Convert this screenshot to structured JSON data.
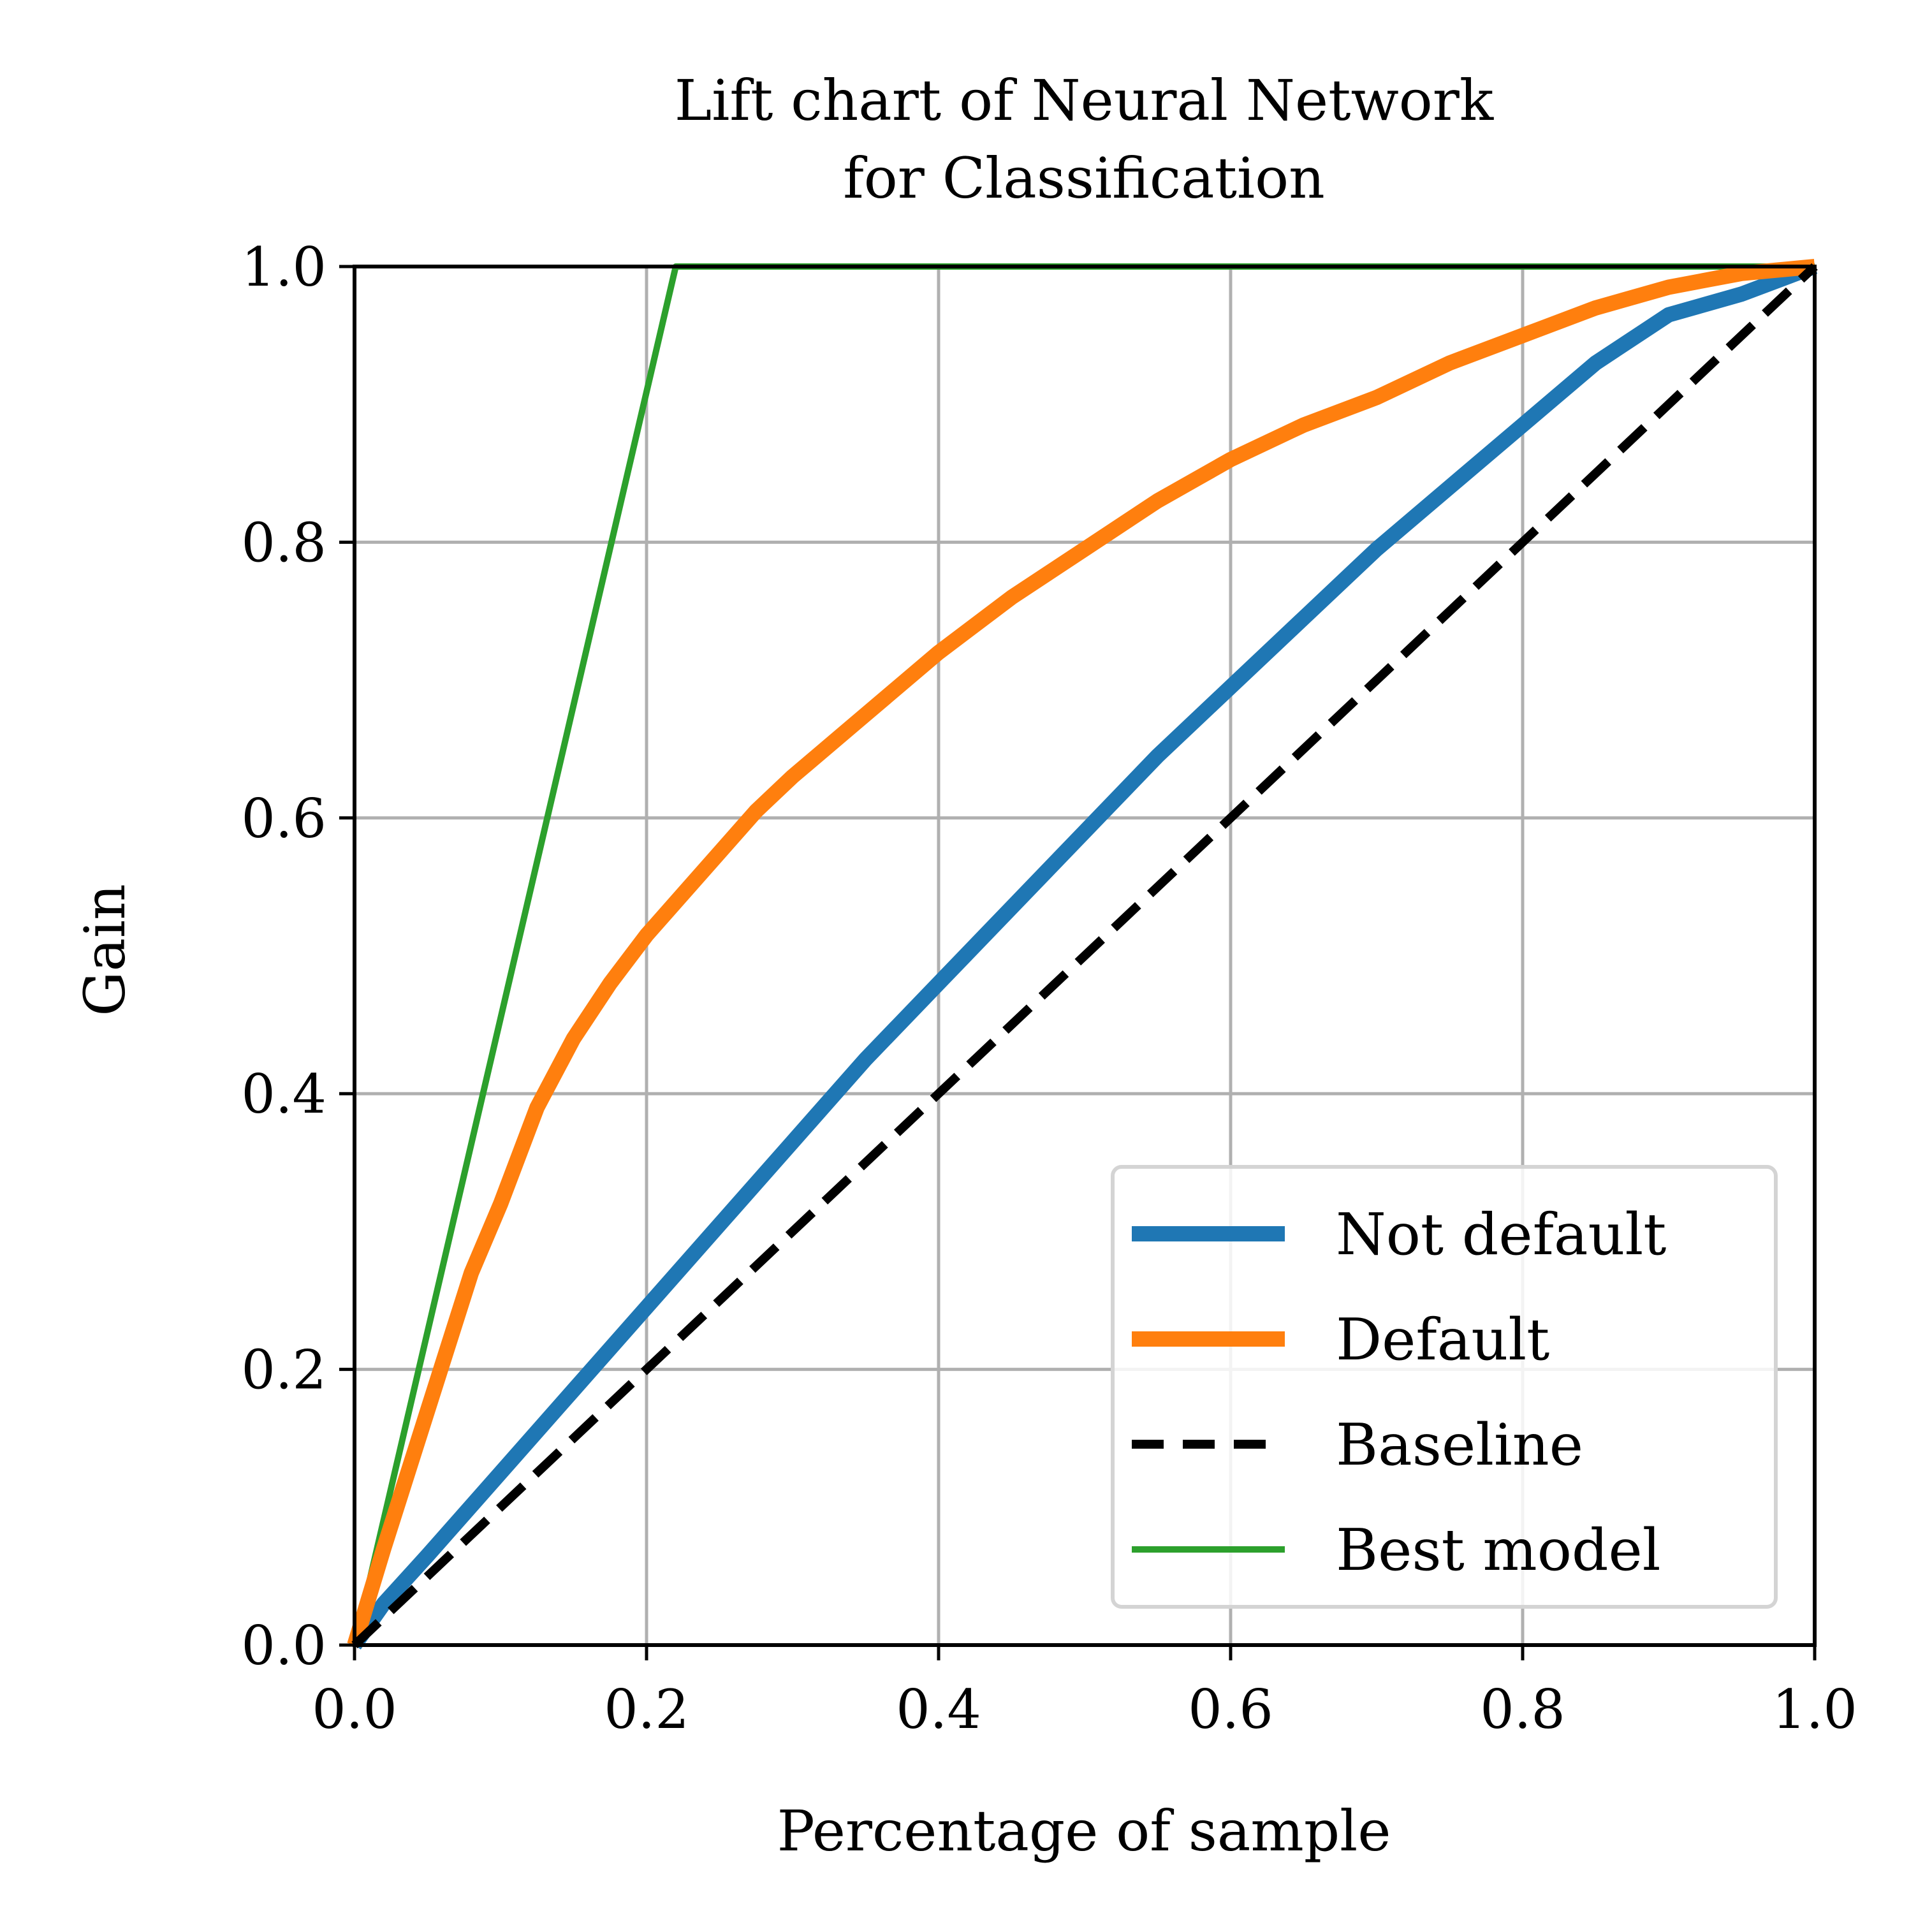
{
  "chart_data": {
    "type": "line",
    "title_lines": [
      "Lift chart of Neural Network",
      "for Classification"
    ],
    "xlabel": "Percentage of sample",
    "ylabel": "Gain",
    "xlim": [
      0,
      1
    ],
    "ylim": [
      0,
      1
    ],
    "x_ticks": [
      "0.0",
      "0.2",
      "0.4",
      "0.6",
      "0.8",
      "1.0"
    ],
    "y_ticks": [
      "0.0",
      "0.2",
      "0.4",
      "0.6",
      "0.8",
      "1.0"
    ],
    "grid": true,
    "legend_position": "lower right",
    "series": [
      {
        "name": "Not default",
        "color": "#1f77b4",
        "style": "solid-thick",
        "points": [
          [
            0,
            0
          ],
          [
            0.02,
            0.03
          ],
          [
            0.05,
            0.065
          ],
          [
            0.1,
            0.125
          ],
          [
            0.15,
            0.185
          ],
          [
            0.2,
            0.245
          ],
          [
            0.25,
            0.305
          ],
          [
            0.3,
            0.365
          ],
          [
            0.35,
            0.425
          ],
          [
            0.4,
            0.48
          ],
          [
            0.45,
            0.535
          ],
          [
            0.5,
            0.59
          ],
          [
            0.55,
            0.645
          ],
          [
            0.6,
            0.695
          ],
          [
            0.65,
            0.745
          ],
          [
            0.7,
            0.795
          ],
          [
            0.75,
            0.84
          ],
          [
            0.8,
            0.885
          ],
          [
            0.85,
            0.93
          ],
          [
            0.9,
            0.965
          ],
          [
            0.95,
            0.98
          ],
          [
            1.0,
            1.0
          ]
        ]
      },
      {
        "name": "Default",
        "color": "#ff7f0e",
        "style": "solid-thick",
        "points": [
          [
            0,
            0
          ],
          [
            0.02,
            0.07
          ],
          [
            0.05,
            0.17
          ],
          [
            0.08,
            0.27
          ],
          [
            0.1,
            0.32
          ],
          [
            0.125,
            0.39
          ],
          [
            0.15,
            0.44
          ],
          [
            0.175,
            0.48
          ],
          [
            0.2,
            0.515
          ],
          [
            0.225,
            0.545
          ],
          [
            0.25,
            0.575
          ],
          [
            0.275,
            0.605
          ],
          [
            0.3,
            0.63
          ],
          [
            0.35,
            0.675
          ],
          [
            0.4,
            0.72
          ],
          [
            0.45,
            0.76
          ],
          [
            0.5,
            0.795
          ],
          [
            0.55,
            0.83
          ],
          [
            0.6,
            0.86
          ],
          [
            0.65,
            0.885
          ],
          [
            0.7,
            0.905
          ],
          [
            0.75,
            0.93
          ],
          [
            0.8,
            0.95
          ],
          [
            0.85,
            0.97
          ],
          [
            0.9,
            0.985
          ],
          [
            0.95,
            0.995
          ],
          [
            1.0,
            1.0
          ]
        ]
      },
      {
        "name": "Baseline",
        "color": "#000000",
        "style": "dashed",
        "points": [
          [
            0,
            0
          ],
          [
            1,
            1
          ]
        ]
      },
      {
        "name": "Best model",
        "color": "#2ca02c",
        "style": "solid-thin",
        "points": [
          [
            0,
            0
          ],
          [
            0.22,
            1
          ],
          [
            1,
            1
          ]
        ]
      }
    ]
  }
}
